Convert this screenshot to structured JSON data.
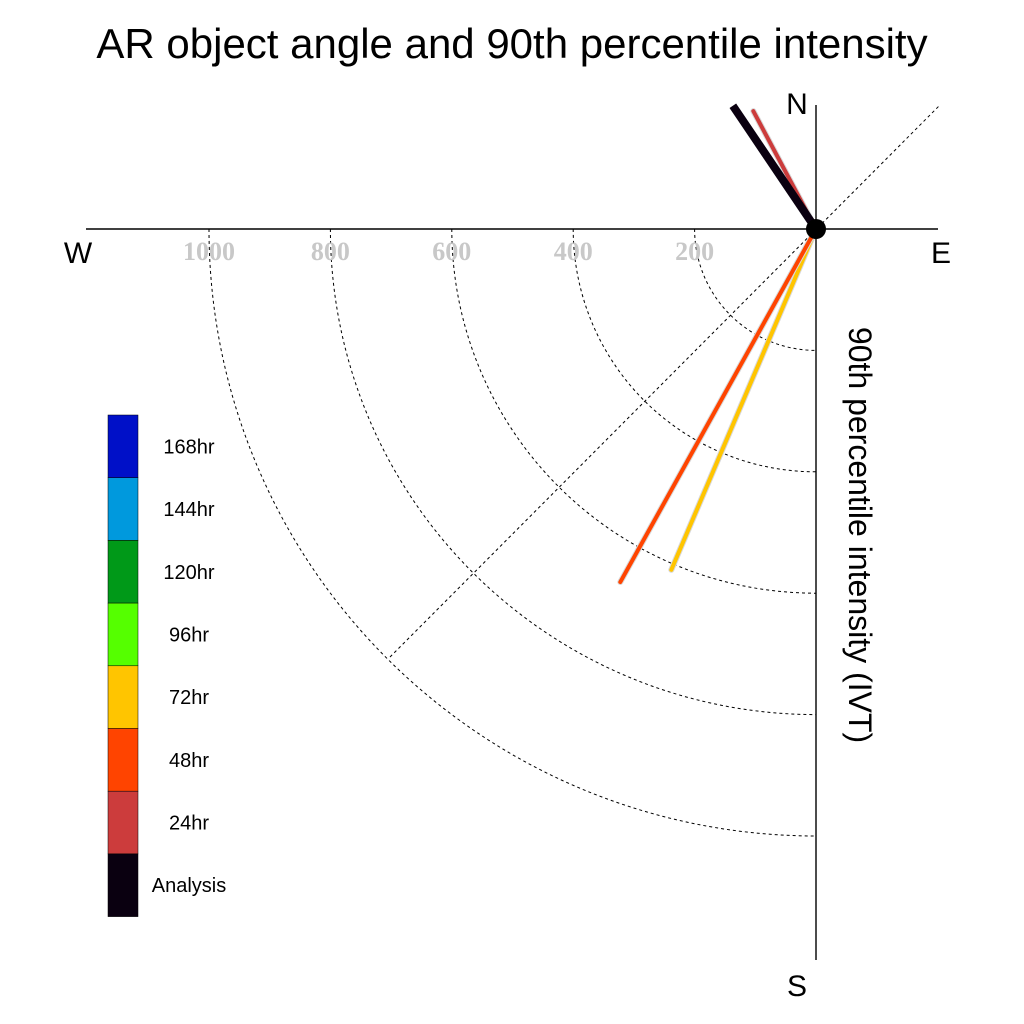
{
  "chart_data": {
    "type": "polar-vector",
    "title": "AR object angle and 90th percentile intensity",
    "radial_label": "90th percentile intensity (IVT)",
    "directions": {
      "north": "N",
      "south": "S",
      "east": "E",
      "west": "W"
    },
    "radial_ticks": [
      200,
      400,
      600,
      800,
      1000
    ],
    "rmax": 1200,
    "grid_style": "dashed",
    "legend_placement": "left",
    "series": [
      {
        "name": "168hr",
        "color": "#0010C8",
        "angle_deg": null,
        "intensity": null
      },
      {
        "name": "144hr",
        "color": "#0099DD",
        "angle_deg": null,
        "intensity": null
      },
      {
        "name": "120hr",
        "color": "#009918",
        "angle_deg": null,
        "intensity": null
      },
      {
        "name": "96hr",
        "color": "#55FF00",
        "angle_deg": null,
        "intensity": null
      },
      {
        "name": "72hr",
        "color": "#FFC500",
        "angle_deg": 203,
        "intensity": 610
      },
      {
        "name": "48hr",
        "color": "#FF4400",
        "angle_deg": 209,
        "intensity": 665
      },
      {
        "name": "24hr",
        "color": "#CC3C3C",
        "angle_deg": 332,
        "intensity": 220
      },
      {
        "name": "Analysis",
        "color": "#0A0010",
        "angle_deg": 326,
        "intensity": 245
      }
    ]
  }
}
